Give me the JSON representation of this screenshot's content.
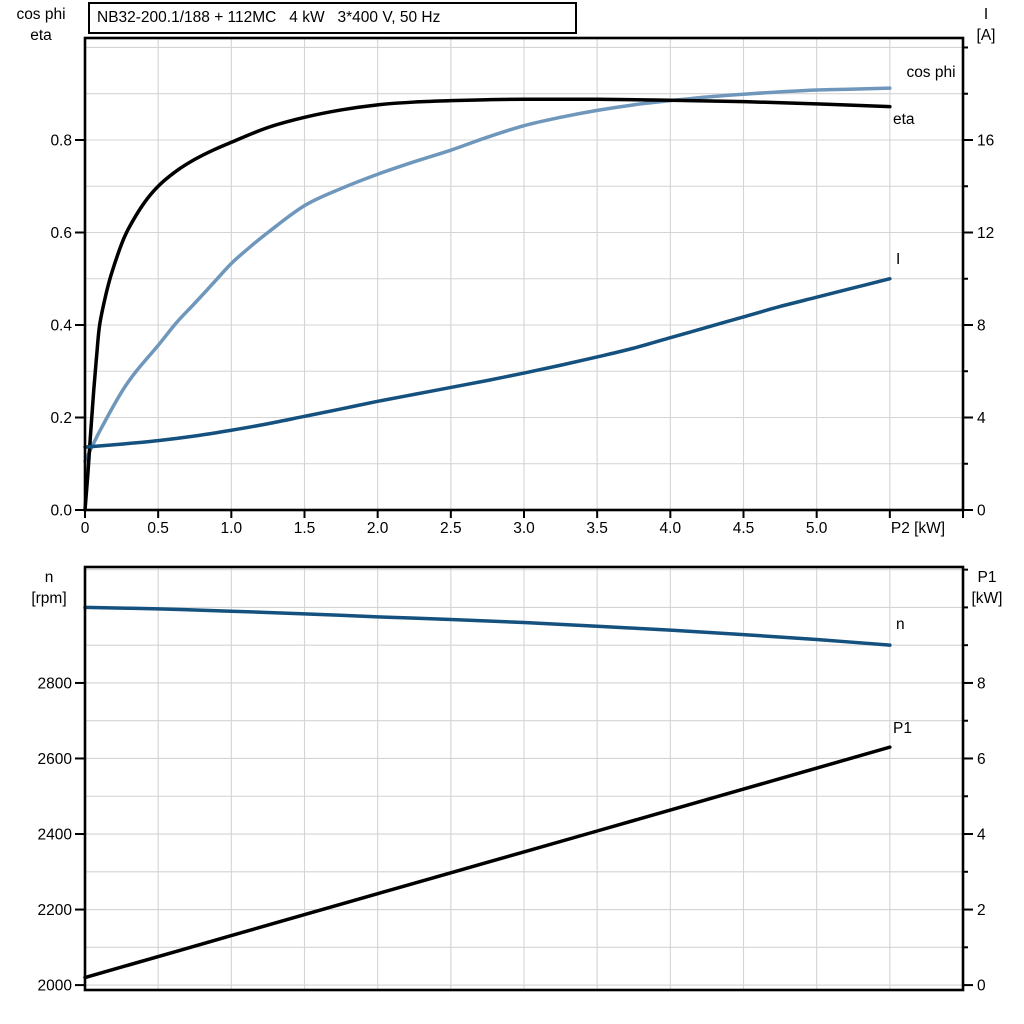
{
  "title_box": {
    "text": "NB32-200.1/188 + 112MC   4 kW   3*400 V, 50 Hz"
  },
  "colors": {
    "black": "#000000",
    "light_blue": "#6F97BC",
    "dark_blue": "#15517E",
    "grid": "#D4D4D4",
    "axis": "#000000",
    "background": "#FFFFFF"
  },
  "chart_data": [
    {
      "type": "line",
      "title": "NB32-200.1/188 + 112MC 4 kW 3*400 V, 50 Hz",
      "x_axis": {
        "title": "P2 [kW]",
        "range": [
          0,
          6
        ],
        "grid": {
          "from": 0.5,
          "to": 5.5,
          "step": 0.5
        },
        "ticks": [
          0,
          0.5,
          1,
          1.5,
          2,
          2.5,
          3,
          3.5,
          4,
          4.5,
          5,
          5.5,
          6
        ],
        "tick_labels": [
          {
            "v": 0,
            "t": "0"
          },
          {
            "v": 0.5,
            "t": "0.5"
          },
          {
            "v": 1,
            "t": "1.0"
          },
          {
            "v": 1.5,
            "t": "1.5"
          },
          {
            "v": 2,
            "t": "2.0"
          },
          {
            "v": 2.5,
            "t": "2.5"
          },
          {
            "v": 3,
            "t": "3.0"
          },
          {
            "v": 3.5,
            "t": "3.5"
          },
          {
            "v": 4,
            "t": "4.0"
          },
          {
            "v": 4.5,
            "t": "4.5"
          },
          {
            "v": 5,
            "t": "5.0"
          }
        ]
      },
      "left_axis": {
        "title_lines": [
          "cos phi",
          "eta"
        ],
        "range": [
          0,
          1.0205
        ],
        "grid": {
          "from": 0.1,
          "to": 1.0,
          "step": 0.1
        },
        "tick_labels": [
          {
            "v": 0,
            "t": "0.0"
          },
          {
            "v": 0.2,
            "t": "0.2"
          },
          {
            "v": 0.4,
            "t": "0.4"
          },
          {
            "v": 0.6,
            "t": "0.6"
          },
          {
            "v": 0.8,
            "t": "0.8"
          }
        ],
        "minor_ticks": []
      },
      "right_axis": {
        "title_lines": [
          "I",
          "[A]"
        ],
        "range": [
          0,
          20.41
        ],
        "tick_labels": [
          {
            "v": 0,
            "t": "0"
          },
          {
            "v": 4,
            "t": "4"
          },
          {
            "v": 8,
            "t": "8"
          },
          {
            "v": 12,
            "t": "12"
          },
          {
            "v": 16,
            "t": "16"
          }
        ],
        "minor_ticks": [
          2,
          6,
          10,
          14,
          18,
          20
        ]
      },
      "series": [
        {
          "name": "cos phi",
          "axis": "left_axis",
          "color": "#6F97BC",
          "points": [
            [
              0,
              0.105
            ],
            [
              0.1,
              0.17
            ],
            [
              0.25,
              0.255
            ],
            [
              0.35,
              0.3
            ],
            [
              0.5,
              0.356
            ],
            [
              0.625,
              0.405
            ],
            [
              0.75,
              0.447
            ],
            [
              0.875,
              0.49
            ],
            [
              1,
              0.533
            ],
            [
              1.125,
              0.568
            ],
            [
              1.25,
              0.6
            ],
            [
              1.5,
              0.658
            ],
            [
              1.75,
              0.695
            ],
            [
              2,
              0.726
            ],
            [
              2.25,
              0.753
            ],
            [
              2.5,
              0.778
            ],
            [
              2.75,
              0.806
            ],
            [
              3,
              0.831
            ],
            [
              3.25,
              0.849
            ],
            [
              3.5,
              0.864
            ],
            [
              3.75,
              0.876
            ],
            [
              4,
              0.885
            ],
            [
              4.25,
              0.893
            ],
            [
              4.5,
              0.899
            ],
            [
              4.75,
              0.904
            ],
            [
              5,
              0.908
            ],
            [
              5.25,
              0.91
            ],
            [
              5.5,
              0.912
            ]
          ]
        },
        {
          "name": "eta",
          "axis": "left_axis",
          "color": "#000000",
          "points": [
            [
              0,
              0
            ],
            [
              0.02,
              0.08
            ],
            [
              0.035,
              0.15
            ],
            [
              0.06,
              0.26
            ],
            [
              0.08,
              0.335
            ],
            [
              0.1,
              0.4
            ],
            [
              0.14,
              0.462
            ],
            [
              0.18,
              0.51
            ],
            [
              0.25,
              0.575
            ],
            [
              0.3,
              0.61
            ],
            [
              0.4,
              0.662
            ],
            [
              0.5,
              0.7
            ],
            [
              0.625,
              0.733
            ],
            [
              0.75,
              0.758
            ],
            [
              0.875,
              0.778
            ],
            [
              1,
              0.795
            ],
            [
              1.25,
              0.827
            ],
            [
              1.5,
              0.849
            ],
            [
              1.75,
              0.865
            ],
            [
              2,
              0.876
            ],
            [
              2.25,
              0.882
            ],
            [
              2.5,
              0.885
            ],
            [
              2.75,
              0.887
            ],
            [
              3,
              0.888
            ],
            [
              3.5,
              0.888
            ],
            [
              4,
              0.886
            ],
            [
              4.5,
              0.883
            ],
            [
              5,
              0.878
            ],
            [
              5.5,
              0.872
            ]
          ]
        },
        {
          "name": "I",
          "axis": "right_axis",
          "color": "#15517E",
          "points": [
            [
              0,
              2.72
            ],
            [
              0.25,
              2.85
            ],
            [
              0.5,
              3
            ],
            [
              0.75,
              3.2
            ],
            [
              1,
              3.45
            ],
            [
              1.25,
              3.73
            ],
            [
              1.5,
              4.05
            ],
            [
              1.75,
              4.37
            ],
            [
              2,
              4.7
            ],
            [
              2.25,
              5
            ],
            [
              2.5,
              5.3
            ],
            [
              2.75,
              5.6
            ],
            [
              3,
              5.92
            ],
            [
              3.25,
              6.26
            ],
            [
              3.5,
              6.62
            ],
            [
              3.75,
              7
            ],
            [
              4,
              7.45
            ],
            [
              4.25,
              7.9
            ],
            [
              4.5,
              8.35
            ],
            [
              4.75,
              8.8
            ],
            [
              5,
              9.2
            ],
            [
              5.25,
              9.6
            ],
            [
              5.5,
              10
            ]
          ]
        }
      ]
    },
    {
      "type": "line",
      "x_axis": {
        "title": "",
        "range": [
          0,
          6
        ],
        "grid": {
          "from": 0.5,
          "to": 5.5,
          "step": 0.5
        },
        "ticks": [],
        "tick_labels": []
      },
      "left_axis": {
        "title_lines": [
          "n",
          "[rpm]"
        ],
        "range": [
          1987,
          3107
        ],
        "grid": {
          "from": 2000,
          "to": 3100,
          "step": 100
        },
        "tick_labels": [
          {
            "v": 2000,
            "t": "2000"
          },
          {
            "v": 2200,
            "t": "2200"
          },
          {
            "v": 2400,
            "t": "2400"
          },
          {
            "v": 2600,
            "t": "2600"
          },
          {
            "v": 2800,
            "t": "2800"
          }
        ],
        "minor_ticks": []
      },
      "right_axis": {
        "title_lines": [
          "P1",
          "[kW]"
        ],
        "range": [
          -0.13,
          11.07
        ],
        "tick_labels": [
          {
            "v": 0,
            "t": "0"
          },
          {
            "v": 2,
            "t": "2"
          },
          {
            "v": 4,
            "t": "4"
          },
          {
            "v": 6,
            "t": "6"
          },
          {
            "v": 8,
            "t": "8"
          }
        ],
        "minor_ticks": [
          1,
          3,
          5,
          7,
          9,
          10,
          11
        ]
      },
      "series": [
        {
          "name": "n",
          "axis": "left_axis",
          "color": "#15517E",
          "points": [
            [
              0,
              3000
            ],
            [
              0.5,
              2996
            ],
            [
              1,
              2990
            ],
            [
              1.5,
              2983
            ],
            [
              2,
              2975
            ],
            [
              2.5,
              2968
            ],
            [
              3,
              2960
            ],
            [
              3.5,
              2950
            ],
            [
              4,
              2940
            ],
            [
              4.5,
              2928
            ],
            [
              5,
              2915
            ],
            [
              5.5,
              2900
            ]
          ]
        },
        {
          "name": "P1",
          "axis": "right_axis",
          "color": "#000000",
          "points": [
            [
              0,
              0.2
            ],
            [
              1,
              1.31
            ],
            [
              2,
              2.42
            ],
            [
              2.75,
              3.25
            ],
            [
              3.5,
              4.08
            ],
            [
              4.5,
              5.19
            ],
            [
              5.5,
              6.3
            ]
          ]
        }
      ]
    }
  ]
}
